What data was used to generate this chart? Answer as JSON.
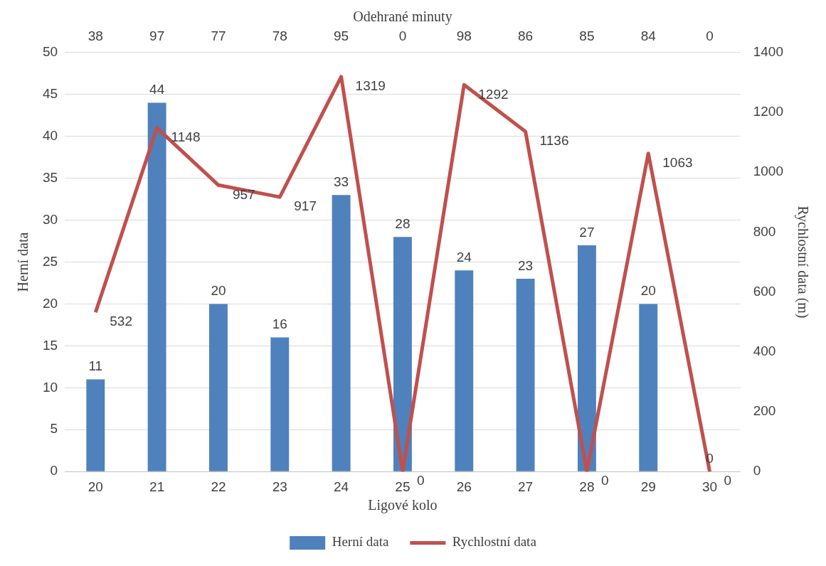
{
  "chart_data": {
    "type": "bar",
    "xlabel": "Ligové kolo",
    "ylabel": "Herní data",
    "y2label": "Rychlostní data (m)",
    "x2label": "Odehrané minuty",
    "categories": [
      "20",
      "21",
      "22",
      "23",
      "24",
      "25",
      "26",
      "27",
      "28",
      "29",
      "30"
    ],
    "annotations": [
      "38",
      "97",
      "77",
      "78",
      "95",
      "0",
      "98",
      "86",
      "85",
      "84",
      "0"
    ],
    "series": [
      {
        "name": "Herní data",
        "color": "#4f81bd",
        "values": [
          11,
          44,
          20,
          16,
          33,
          28,
          24,
          23,
          27,
          20,
          0
        ]
      },
      {
        "name": "Rychlostní data",
        "type": "line",
        "axis": "y2",
        "color": "#c0504d",
        "values": [
          532,
          1148,
          957,
          917,
          1319,
          0,
          1292,
          1136,
          0,
          1063,
          0
        ]
      }
    ],
    "ylim": [
      0,
      50
    ],
    "yticks": [
      0,
      5,
      10,
      15,
      20,
      25,
      30,
      35,
      40,
      45,
      50
    ],
    "y2lim": [
      0,
      1400
    ],
    "y2ticks": [
      0,
      200,
      400,
      600,
      800,
      1000,
      1200,
      1400
    ],
    "grid": "y",
    "legend": "bottom",
    "data_labels": true,
    "marker": "none"
  }
}
